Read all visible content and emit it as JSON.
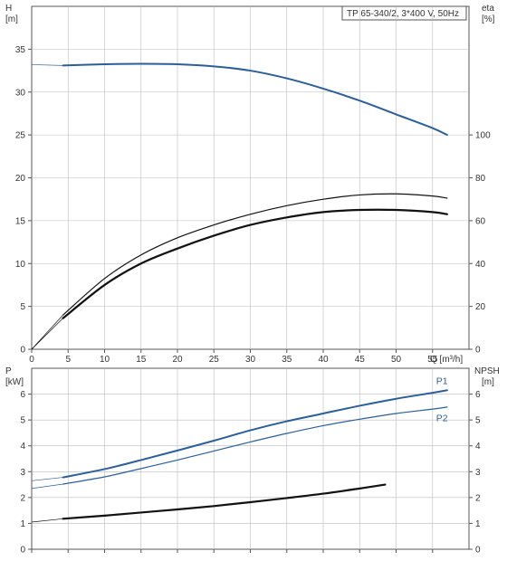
{
  "colors": {
    "blue": "#2a5f9a",
    "black": "#111111",
    "thin_blue": "#7b9cc4",
    "grid": "#bbbbbb",
    "frame": "#555555"
  },
  "chart_data": [
    {
      "type": "line",
      "title": "TP 65-340/2, 3*400 V, 50Hz",
      "xlabel": "Q [m³/h]",
      "ylabel_left": [
        "H",
        "[m]"
      ],
      "ylabel_right": [
        "eta",
        "[%]"
      ],
      "xlim": [
        0,
        60
      ],
      "ylim_left": [
        0,
        40
      ],
      "ylim_right": [
        0,
        160
      ],
      "x_ticks": [
        0,
        5,
        10,
        15,
        20,
        25,
        30,
        35,
        40,
        45,
        50,
        55
      ],
      "y_ticks_left": [
        0,
        5,
        10,
        15,
        20,
        25,
        30,
        35
      ],
      "y_ticks_right": [
        0,
        20,
        40,
        60,
        80,
        100
      ],
      "grid": true,
      "series": [
        {
          "axis": "left",
          "color": "blue",
          "width": 2,
          "thin_ext": true,
          "x": [
            0,
            4.3,
            10,
            15,
            20,
            25,
            30,
            35,
            40,
            45,
            50,
            55,
            57
          ],
          "y": [
            33.2,
            33.1,
            33.25,
            33.3,
            33.25,
            33.0,
            32.5,
            31.6,
            30.4,
            29.0,
            27.4,
            25.8,
            25.0
          ]
        },
        {
          "axis": "right",
          "color": "black",
          "width": 1.2,
          "thin_ext": true,
          "x": [
            0,
            4.3,
            10,
            15,
            20,
            25,
            30,
            35,
            40,
            45,
            50,
            55,
            57
          ],
          "y": [
            0,
            16,
            33,
            44,
            52,
            58,
            63,
            67,
            70,
            72,
            72.5,
            71.5,
            70.5
          ]
        },
        {
          "axis": "right",
          "color": "black",
          "width": 2.2,
          "thin_ext": true,
          "x": [
            0,
            4.3,
            10,
            15,
            20,
            25,
            30,
            35,
            40,
            45,
            50,
            55,
            57
          ],
          "y": [
            0,
            14.5,
            30,
            40,
            47,
            53,
            58,
            61.5,
            64,
            65,
            65,
            64,
            63
          ]
        }
      ]
    },
    {
      "type": "line",
      "ylabel_left": [
        "P",
        "[kW]"
      ],
      "ylabel_right": [
        "NPSH",
        "[m]"
      ],
      "xlim": [
        0,
        60
      ],
      "ylim_left": [
        0,
        7
      ],
      "ylim_right": [
        0,
        7
      ],
      "y_ticks_left": [
        0,
        1,
        2,
        3,
        4,
        5,
        6
      ],
      "y_ticks_right": [
        0,
        1,
        2,
        3,
        4,
        5,
        6
      ],
      "grid": true,
      "series": [
        {
          "name": "P1",
          "axis": "left",
          "color": "blue",
          "width": 2,
          "thin_ext": true,
          "x": [
            0,
            4.3,
            10,
            15,
            20,
            25,
            30,
            35,
            40,
            45,
            50,
            55,
            57
          ],
          "y": [
            2.65,
            2.78,
            3.1,
            3.45,
            3.82,
            4.2,
            4.6,
            4.95,
            5.25,
            5.55,
            5.82,
            6.05,
            6.15
          ],
          "label_at": [
            55.5,
            6.5
          ]
        },
        {
          "name": "P2",
          "axis": "left",
          "color": "blue",
          "width": 1.2,
          "thin_ext": true,
          "x": [
            0,
            4.3,
            10,
            15,
            20,
            25,
            30,
            35,
            40,
            45,
            50,
            55,
            57
          ],
          "y": [
            2.35,
            2.52,
            2.8,
            3.12,
            3.45,
            3.8,
            4.15,
            4.48,
            4.78,
            5.03,
            5.25,
            5.42,
            5.5
          ],
          "label_at": [
            55.5,
            5.05
          ]
        },
        {
          "axis": "right",
          "color": "black",
          "width": 2.2,
          "thin_ext": true,
          "x": [
            0,
            4.3,
            10,
            15,
            20,
            25,
            30,
            35,
            40,
            45,
            48.5
          ],
          "y": [
            1.05,
            1.18,
            1.3,
            1.42,
            1.54,
            1.67,
            1.82,
            1.98,
            2.15,
            2.35,
            2.5
          ]
        }
      ]
    }
  ]
}
